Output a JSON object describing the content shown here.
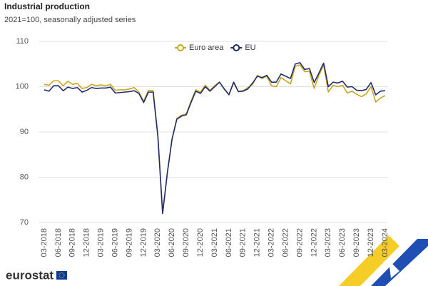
{
  "chart_data": {
    "type": "line",
    "title": "Industrial production",
    "subtitle": "2021=100, seasonally adjusted series",
    "branding": "eurostat",
    "categories": [
      "03-2018",
      null,
      null,
      "06-2018",
      null,
      null,
      "09-2018",
      null,
      null,
      "12-2018",
      null,
      null,
      "03-2019",
      null,
      null,
      "06-2019",
      null,
      null,
      "09-2019",
      null,
      null,
      "12-2019",
      null,
      null,
      "03-2020",
      null,
      null,
      "06-2020",
      null,
      null,
      "09-2020",
      null,
      null,
      "12-2020",
      null,
      null,
      "03-2021",
      null,
      null,
      "06-2021",
      null,
      null,
      "09-2021",
      null,
      null,
      "12-2021",
      null,
      null,
      "03-2022",
      null,
      null,
      "06-2022",
      null,
      null,
      "09-2022",
      null,
      null,
      "12-2022",
      null,
      null,
      "03-2023",
      null,
      null,
      "06-2023",
      null,
      null,
      "09-2023",
      null,
      null,
      "12-2023",
      null,
      null,
      "03-2024"
    ],
    "series": [
      {
        "name": "Euro area",
        "color": "#c9a520",
        "values": [
          100.5,
          100.3,
          101.3,
          101.3,
          100.2,
          101.2,
          100.5,
          100.7,
          99.6,
          99.8,
          100.5,
          100.2,
          100.4,
          100.2,
          100.5,
          99.2,
          99.3,
          99.3,
          99.5,
          99.8,
          98.8,
          96.8,
          99.2,
          99.1,
          89,
          72,
          81,
          88.5,
          93,
          93.7,
          94,
          96.8,
          99.3,
          98.8,
          100.3,
          99.2,
          100.2,
          101,
          99.6,
          98.3,
          100.8,
          98.9,
          99.1,
          99.8,
          100.5,
          102.5,
          101.8,
          102.3,
          100.2,
          100,
          102,
          101.3,
          100.6,
          104.5,
          104.8,
          103.3,
          103.4,
          99.6,
          102.5,
          104.8,
          98.8,
          100.3,
          100,
          100.3,
          98.6,
          99,
          98.3,
          97.8,
          98.4,
          100,
          96.6,
          97.5,
          98
        ]
      },
      {
        "name": "EU",
        "color": "#1f2d6b",
        "values": [
          99.3,
          99,
          100.2,
          100.2,
          99.1,
          99.9,
          99.6,
          99.8,
          98.8,
          99.2,
          99.8,
          99.6,
          99.7,
          99.7,
          99.9,
          98.6,
          98.7,
          98.8,
          98.9,
          99.1,
          98.5,
          96.5,
          98.8,
          98.8,
          89,
          72,
          81,
          88.5,
          92.8,
          93.5,
          93.8,
          96.5,
          99,
          98.5,
          100,
          99,
          100,
          101,
          99.5,
          98.2,
          101,
          98.9,
          99,
          99.5,
          100.8,
          102.3,
          102,
          102.5,
          101,
          101,
          102.8,
          102.3,
          101.8,
          105,
          105.3,
          103.8,
          104,
          100.9,
          103,
          105.2,
          100,
          101,
          100.8,
          101.2,
          99.9,
          100,
          99.2,
          99.1,
          99.4,
          100.9,
          98.2,
          99,
          99.1
        ]
      }
    ],
    "ylim": [
      70,
      110
    ],
    "yticks": [
      70,
      80,
      90,
      100,
      110
    ],
    "grid": true,
    "legend": "top"
  }
}
